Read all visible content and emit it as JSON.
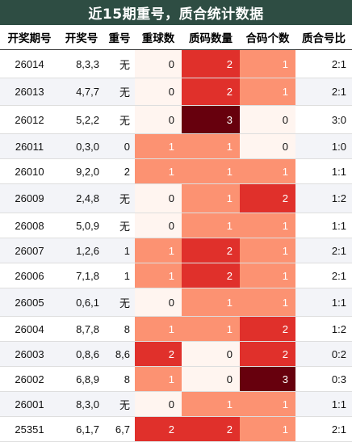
{
  "title": "近15期重号，质合统计数据",
  "headers": [
    "开奖期号",
    "开奖号",
    "重号",
    "重球数",
    "质码数量",
    "合码个数",
    "质合号比"
  ],
  "colors": {
    "title_bg": "#2e4d43",
    "heat_0": "#fff5f0",
    "heat_1": "#fc9272",
    "heat_2": "#e0302b",
    "heat_3": "#67000d"
  },
  "rows": [
    {
      "period": "26014",
      "numbers": "8,3,3",
      "repeat": "无",
      "repeat_count": "0",
      "prime_count": "2",
      "composite_count": "1",
      "ratio": "2:1"
    },
    {
      "period": "26013",
      "numbers": "4,7,7",
      "repeat": "无",
      "repeat_count": "0",
      "prime_count": "2",
      "composite_count": "1",
      "ratio": "2:1"
    },
    {
      "period": "26012",
      "numbers": "5,2,2",
      "repeat": "无",
      "repeat_count": "0",
      "prime_count": "3",
      "composite_count": "0",
      "ratio": "3:0"
    },
    {
      "period": "26011",
      "numbers": "0,3,0",
      "repeat": "0",
      "repeat_count": "1",
      "prime_count": "1",
      "composite_count": "0",
      "ratio": "1:0"
    },
    {
      "period": "26010",
      "numbers": "9,2,0",
      "repeat": "2",
      "repeat_count": "1",
      "prime_count": "1",
      "composite_count": "1",
      "ratio": "1:1"
    },
    {
      "period": "26009",
      "numbers": "2,4,8",
      "repeat": "无",
      "repeat_count": "0",
      "prime_count": "1",
      "composite_count": "2",
      "ratio": "1:2"
    },
    {
      "period": "26008",
      "numbers": "5,0,9",
      "repeat": "无",
      "repeat_count": "0",
      "prime_count": "1",
      "composite_count": "1",
      "ratio": "1:1"
    },
    {
      "period": "26007",
      "numbers": "1,2,6",
      "repeat": "1",
      "repeat_count": "1",
      "prime_count": "2",
      "composite_count": "1",
      "ratio": "2:1"
    },
    {
      "period": "26006",
      "numbers": "7,1,8",
      "repeat": "1",
      "repeat_count": "1",
      "prime_count": "2",
      "composite_count": "1",
      "ratio": "2:1"
    },
    {
      "period": "26005",
      "numbers": "0,6,1",
      "repeat": "无",
      "repeat_count": "0",
      "prime_count": "1",
      "composite_count": "1",
      "ratio": "1:1"
    },
    {
      "period": "26004",
      "numbers": "8,7,8",
      "repeat": "8",
      "repeat_count": "1",
      "prime_count": "1",
      "composite_count": "2",
      "ratio": "1:2"
    },
    {
      "period": "26003",
      "numbers": "0,8,6",
      "repeat": "8,6",
      "repeat_count": "2",
      "prime_count": "0",
      "composite_count": "2",
      "ratio": "0:2"
    },
    {
      "period": "26002",
      "numbers": "6,8,9",
      "repeat": "8",
      "repeat_count": "1",
      "prime_count": "0",
      "composite_count": "3",
      "ratio": "0:3"
    },
    {
      "period": "26001",
      "numbers": "8,3,0",
      "repeat": "无",
      "repeat_count": "0",
      "prime_count": "1",
      "composite_count": "1",
      "ratio": "1:1"
    },
    {
      "period": "25351",
      "numbers": "6,1,7",
      "repeat": "6,7",
      "repeat_count": "2",
      "prime_count": "2",
      "composite_count": "1",
      "ratio": "2:1"
    }
  ]
}
